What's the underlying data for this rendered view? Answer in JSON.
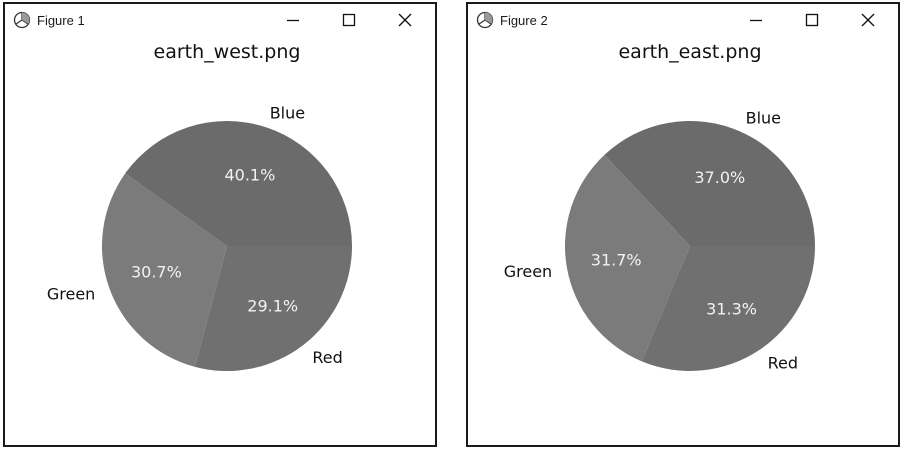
{
  "windows": [
    {
      "title": "Figure 1",
      "icon": "figure-app-icon"
    },
    {
      "title": "Figure 2",
      "icon": "figure-app-icon"
    }
  ],
  "window_controls": {
    "minimize_icon": "minimize-icon",
    "maximize_icon": "maximize-icon",
    "close_icon": "close-icon"
  },
  "chart_data": [
    {
      "type": "pie",
      "title": "earth_west.png",
      "slices": [
        {
          "label": "Blue",
          "pct_label": "40.1%",
          "value": 40.1,
          "color": "#6b6b6b"
        },
        {
          "label": "Green",
          "pct_label": "30.7%",
          "value": 30.7,
          "color": "#7b7b7b"
        },
        {
          "label": "Red",
          "pct_label": "29.1%",
          "value": 29.1,
          "color": "#707070"
        }
      ],
      "start_angle_deg": 0,
      "direction": "counterclockwise"
    },
    {
      "type": "pie",
      "title": "earth_east.png",
      "slices": [
        {
          "label": "Blue",
          "pct_label": "37.0%",
          "value": 37.0,
          "color": "#6b6b6b"
        },
        {
          "label": "Green",
          "pct_label": "31.7%",
          "value": 31.7,
          "color": "#7b7b7b"
        },
        {
          "label": "Red",
          "pct_label": "31.3%",
          "value": 31.3,
          "color": "#707070"
        }
      ],
      "start_angle_deg": 0,
      "direction": "counterclockwise"
    }
  ]
}
